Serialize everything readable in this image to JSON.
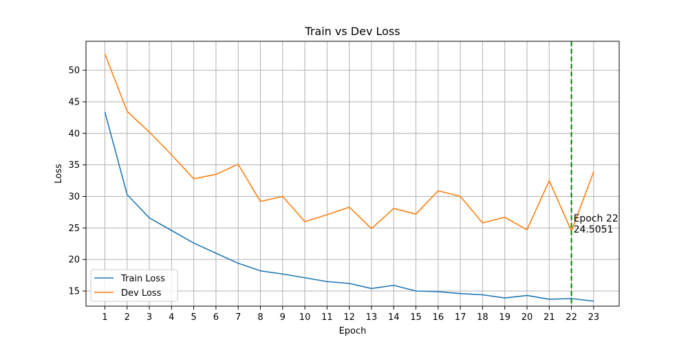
{
  "chart_data": {
    "type": "line",
    "title": "Train vs Dev Loss",
    "xlabel": "Epoch",
    "ylabel": "Loss",
    "x": [
      1,
      2,
      3,
      4,
      5,
      6,
      7,
      8,
      9,
      10,
      11,
      12,
      13,
      14,
      15,
      16,
      17,
      18,
      19,
      20,
      21,
      22,
      23
    ],
    "x_ticks": [
      "1",
      "2",
      "3",
      "4",
      "5",
      "6",
      "7",
      "8",
      "9",
      "10",
      "11",
      "12",
      "13",
      "14",
      "15",
      "16",
      "17",
      "18",
      "19",
      "20",
      "21",
      "22",
      "23"
    ],
    "y_ticks": [
      "15",
      "20",
      "25",
      "30",
      "35",
      "40",
      "45",
      "50"
    ],
    "xlim": [
      0.15,
      24.15
    ],
    "ylim": [
      12.6,
      54.6
    ],
    "grid": true,
    "legend_position": "lower-left",
    "series": [
      {
        "name": "Train Loss",
        "color": "#1f77b4",
        "values": [
          43.4,
          30.3,
          26.6,
          24.6,
          22.6,
          21.0,
          19.4,
          18.2,
          17.7,
          17.1,
          16.5,
          16.2,
          15.4,
          15.9,
          15.0,
          14.9,
          14.6,
          14.4,
          13.9,
          14.3,
          13.7,
          13.8,
          13.4
        ]
      },
      {
        "name": "Dev Loss",
        "color": "#ff7f0e",
        "values": [
          52.6,
          43.5,
          40.2,
          36.6,
          32.8,
          33.5,
          35.1,
          29.2,
          30.0,
          26.0,
          27.1,
          28.3,
          24.9,
          28.1,
          27.2,
          30.9,
          30.0,
          25.8,
          26.7,
          24.7,
          32.5,
          24.5051,
          33.9
        ]
      }
    ],
    "annotations": [
      {
        "x": 22,
        "line_color": "#008000",
        "line_style": "dashed",
        "text_line1": "Epoch 22",
        "text_line2": "24.5051"
      }
    ]
  }
}
